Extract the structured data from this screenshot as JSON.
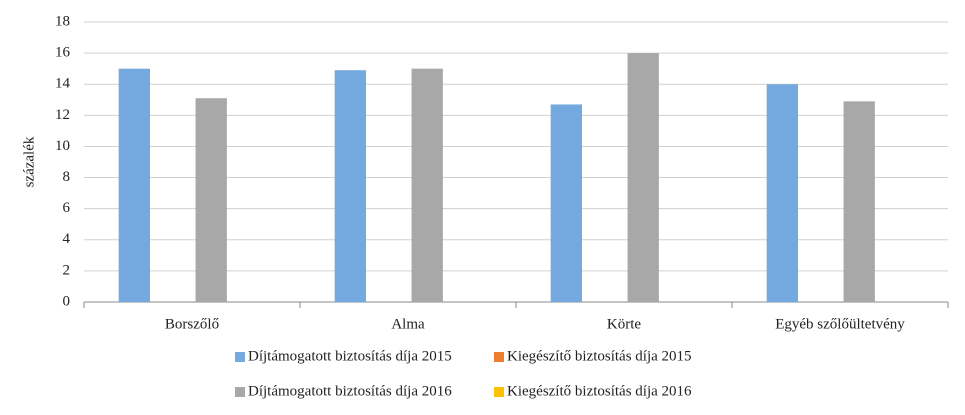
{
  "chart_data": {
    "type": "bar",
    "y_label": "százalék",
    "categories": [
      "Borszőlő",
      "Alma",
      "Körte",
      "Egyéb szőlőültetvény"
    ],
    "series": [
      {
        "name": "Díjtámogatott biztosítás díja 2015",
        "color": "#74a9e0",
        "values": [
          15,
          14.9,
          12.7,
          14
        ]
      },
      {
        "name": "Kiegészítő biztosítás díja 2015",
        "color": "#ed7d31",
        "values": [
          0,
          0,
          0,
          0
        ]
      },
      {
        "name": "Díjtámogatott biztosítás díja 2016",
        "color": "#a8a8a8",
        "values": [
          13.1,
          15,
          16,
          12.9
        ]
      },
      {
        "name": "Kiegészítő biztosítás díja 2016",
        "color": "#ffc000",
        "values": [
          0,
          0,
          0,
          0
        ]
      }
    ],
    "ylim": [
      0,
      18
    ],
    "yticks": [
      0,
      2,
      4,
      6,
      8,
      10,
      12,
      14,
      16,
      18
    ],
    "grid": true,
    "legend": "bottom"
  }
}
